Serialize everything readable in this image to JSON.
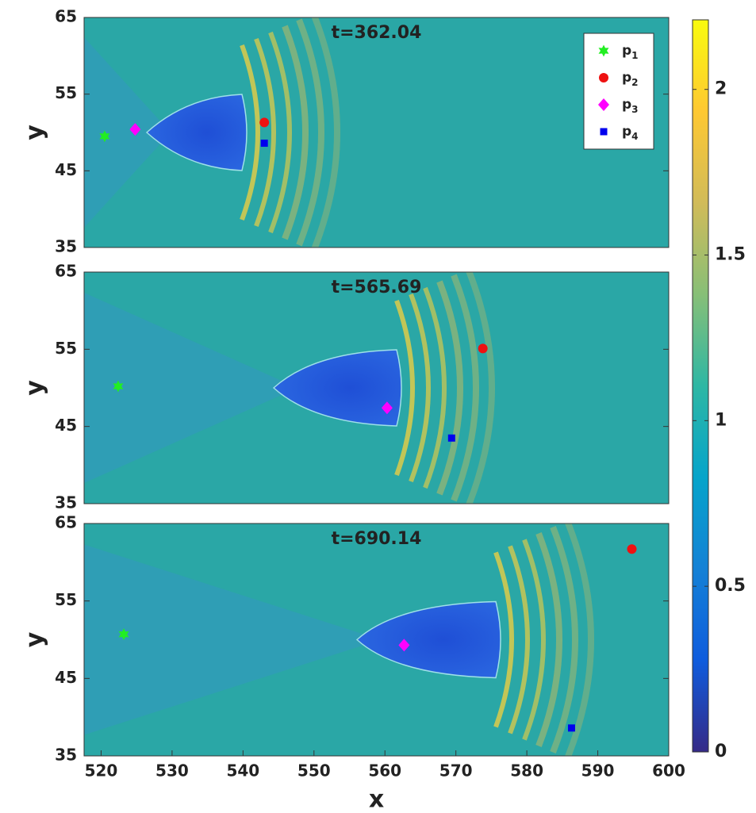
{
  "chart_data": [
    {
      "type": "scatter",
      "title": "t=362.04",
      "ylabel": "y",
      "xlim": [
        517.6,
        600
      ],
      "ylim": [
        35,
        65
      ],
      "yticks": [
        35,
        45,
        55,
        65
      ],
      "legend": "upper right",
      "series": [
        {
          "name": "p1",
          "color": "#22ee22",
          "marker": "hexagram",
          "x": [
            520.5
          ],
          "values": [
            49.5
          ]
        },
        {
          "name": "p2",
          "color": "#ee1111",
          "marker": "circle",
          "x": [
            543.0
          ],
          "values": [
            51.3
          ]
        },
        {
          "name": "p3",
          "color": "#ff00ff",
          "marker": "diamond",
          "x": [
            524.8
          ],
          "values": [
            50.4
          ]
        },
        {
          "name": "p4",
          "color": "#0000ee",
          "marker": "square",
          "x": [
            543.0
          ],
          "values": [
            48.6
          ]
        }
      ]
    },
    {
      "type": "scatter",
      "title": "t=565.69",
      "ylabel": "y",
      "xlim": [
        517.6,
        600
      ],
      "ylim": [
        35,
        65
      ],
      "yticks": [
        35,
        45,
        55,
        65
      ],
      "series": [
        {
          "color": "#22ee22",
          "marker": "hexagram",
          "x": [
            522.4
          ],
          "values": [
            50.2
          ]
        },
        {
          "color": "#ee1111",
          "marker": "circle",
          "x": [
            573.8
          ],
          "values": [
            55.1
          ]
        },
        {
          "color": "#ff00ff",
          "marker": "diamond",
          "x": [
            560.3
          ],
          "values": [
            47.4
          ]
        },
        {
          "color": "#0000ee",
          "marker": "square",
          "x": [
            569.4
          ],
          "values": [
            43.5
          ]
        }
      ]
    },
    {
      "type": "scatter",
      "title": "t=690.14",
      "ylabel": "y",
      "xlabel": "x",
      "xlim": [
        517.6,
        600
      ],
      "ylim": [
        35,
        65
      ],
      "yticks": [
        35,
        45,
        55,
        65
      ],
      "xticks": [
        520,
        530,
        540,
        550,
        560,
        570,
        580,
        590,
        600
      ],
      "series": [
        {
          "color": "#22ee22",
          "marker": "hexagram",
          "x": [
            523.2
          ],
          "values": [
            50.7
          ]
        },
        {
          "color": "#ee1111",
          "marker": "circle",
          "x": [
            594.8
          ],
          "values": [
            61.7
          ]
        },
        {
          "color": "#ff00ff",
          "marker": "diamond",
          "x": [
            562.7
          ],
          "values": [
            49.3
          ]
        },
        {
          "color": "#0000ee",
          "marker": "square",
          "x": [
            586.3
          ],
          "values": [
            38.6
          ]
        }
      ]
    },
    {
      "type": "colorbar",
      "clim": [
        0,
        2.21
      ],
      "ticks": [
        0,
        0.5,
        1,
        1.5,
        2
      ],
      "colors": [
        "#352a87",
        "#0f5cdd",
        "#1481d6",
        "#06a4ca",
        "#2eb7a4",
        "#87bf77",
        "#d1bb59",
        "#fec832",
        "#f9fb0e"
      ]
    }
  ]
}
